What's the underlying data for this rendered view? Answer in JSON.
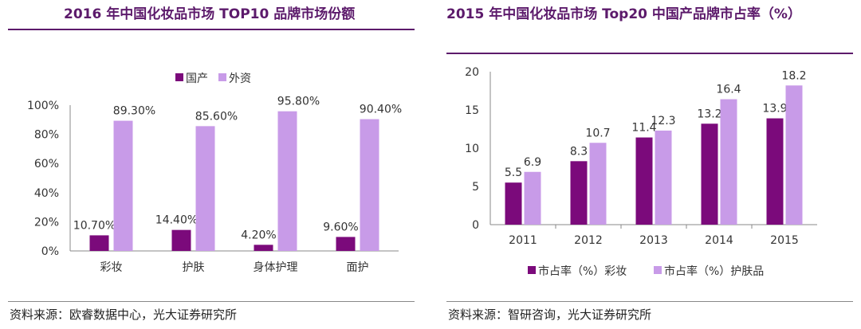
{
  "colors": {
    "domestic": "#7b0a7b",
    "foreign": "#c89be8",
    "title": "#5c1a6b"
  },
  "left_panel": {
    "title": "2016 年中国化妆品市场 TOP10 品牌市场份额",
    "source": "资料来源：欧睿数据中心，光大证券研究所"
  },
  "right_panel": {
    "title": "2015 年中国化妆品市场 Top20 中国产品牌市占率（%）",
    "source": "资料来源：智研咨询，光大证券研究所"
  },
  "chart_data": [
    {
      "id": "left",
      "type": "bar",
      "categories": [
        "彩妆",
        "护肤",
        "身体护理",
        "面护"
      ],
      "series": [
        {
          "name": "国产",
          "values": [
            10.7,
            14.4,
            4.2,
            9.6
          ],
          "labels": [
            "10.70%",
            "14.40%",
            "4.20%",
            "9.60%"
          ]
        },
        {
          "name": "外资",
          "values": [
            89.3,
            85.6,
            95.8,
            90.4
          ],
          "labels": [
            "89.30%",
            "85.60%",
            "95.80%",
            "90.40%"
          ]
        }
      ],
      "ylim": [
        0,
        100
      ],
      "yticks": [
        "0%",
        "20%",
        "40%",
        "60%",
        "80%",
        "100%"
      ],
      "legend_position": "top-center"
    },
    {
      "id": "right",
      "type": "bar",
      "categories": [
        "2011",
        "2012",
        "2013",
        "2014",
        "2015"
      ],
      "series": [
        {
          "name": "市占率（%）彩妆",
          "values": [
            5.5,
            8.3,
            11.4,
            13.2,
            13.9
          ],
          "labels": [
            "5.5",
            "8.3",
            "11.4",
            "13.2",
            "13.9"
          ]
        },
        {
          "name": "市占率（%）护肤品",
          "values": [
            6.9,
            10.7,
            12.3,
            16.4,
            18.2
          ],
          "labels": [
            "6.9",
            "10.7",
            "12.3",
            "16.4",
            "18.2"
          ]
        }
      ],
      "ylim": [
        0,
        20
      ],
      "yticks": [
        "0",
        "5",
        "10",
        "15",
        "20"
      ],
      "legend_position": "bottom-center"
    }
  ]
}
